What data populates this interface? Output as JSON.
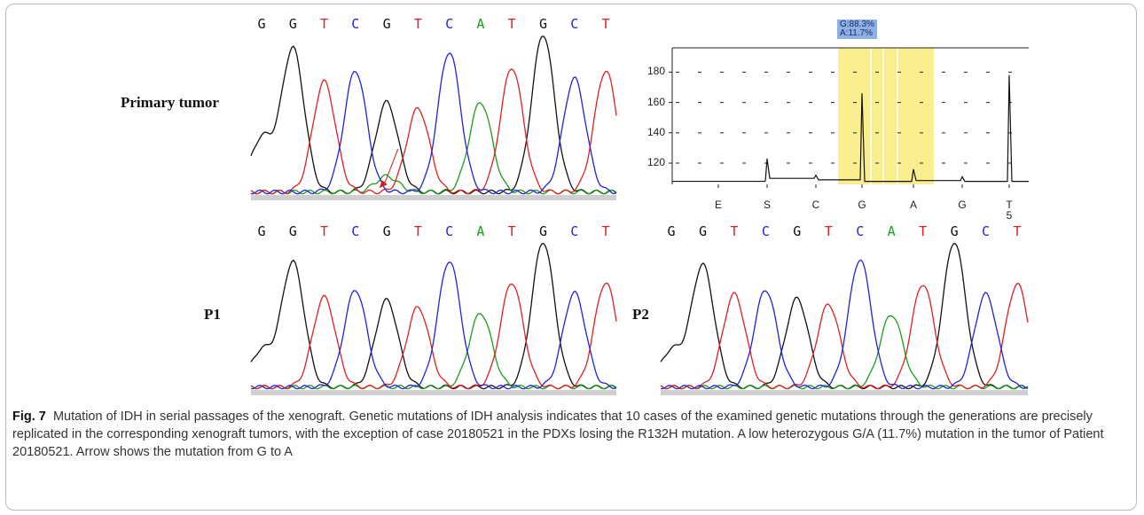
{
  "colors": {
    "G": "#111111",
    "A": "#1a9e1a",
    "T": "#e02020",
    "C": "#2222dd",
    "highlight": "#fbee8e",
    "badge": "#8fb0e6"
  },
  "panels": [
    {
      "id": "primary",
      "label": "Primary tumor",
      "bases": [
        "G",
        "G",
        "T",
        "C",
        "G",
        "T",
        "C",
        "A",
        "T",
        "G",
        "C",
        "T"
      ],
      "peaks": [
        0.34,
        0.91,
        0.7,
        0.77,
        0.57,
        0.53,
        0.89,
        0.57,
        0.79,
        1.0,
        0.72,
        0.77
      ],
      "secondary_peak": {
        "base": "A",
        "position": 4,
        "height": 0.1
      },
      "mutation_arrow": true
    },
    {
      "id": "p1",
      "label": "P1",
      "bases": [
        "G",
        "G",
        "T",
        "C",
        "G",
        "T",
        "C",
        "A",
        "T",
        "G",
        "C",
        "T"
      ],
      "peaks": [
        0.25,
        0.86,
        0.62,
        0.67,
        0.6,
        0.55,
        0.87,
        0.51,
        0.72,
        1.0,
        0.65,
        0.72
      ]
    },
    {
      "id": "p2",
      "label": "P2",
      "bases": [
        "G",
        "G",
        "T",
        "C",
        "G",
        "T",
        "C",
        "A",
        "T",
        "G",
        "C",
        "T"
      ],
      "peaks": [
        0.25,
        0.84,
        0.64,
        0.67,
        0.61,
        0.57,
        0.88,
        0.5,
        0.71,
        1.0,
        0.64,
        0.71
      ]
    }
  ],
  "pyrogram": {
    "badge_line1": "G:88.3%",
    "badge_line2": "A:11.7%",
    "y_ticks": [
      "180",
      "160",
      "140",
      "120"
    ],
    "dispensation": [
      "E",
      "S",
      "C",
      "G",
      "A",
      "G",
      "T"
    ],
    "dispensation_sub": "5",
    "peak_heights": [
      0,
      123,
      112,
      166,
      116,
      111,
      178
    ]
  },
  "caption": {
    "label": "Fig. 7",
    "text": "Mutation of IDH in serial passages of the xenograft. Genetic mutations of IDH analysis indicates that 10 cases of the examined genetic mutations through the generations are precisely replicated in the corresponding xenograft tumors, with the exception of case 20180521 in the PDXs losing the R132H mutation. A low heterozygous G/A (11.7%) mutation in the tumor of Patient 20180521. Arrow shows the mutation from G to A"
  }
}
